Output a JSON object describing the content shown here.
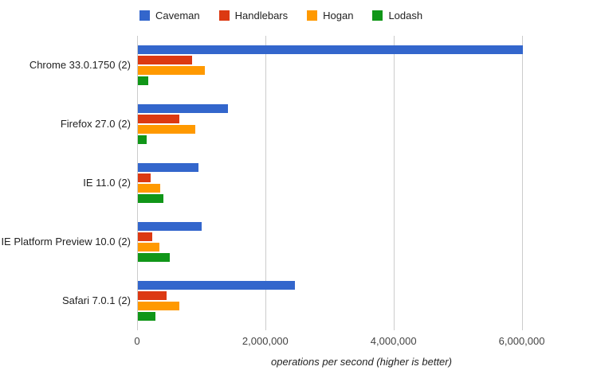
{
  "page": {
    "background": "#ffffff"
  },
  "chart_data": {
    "type": "bar",
    "orientation": "horizontal",
    "title": "",
    "xlabel": "operations per second (higher is better)",
    "ylabel": "",
    "xlim": [
      0,
      7000000
    ],
    "xticks": [
      0,
      2000000,
      4000000,
      6000000
    ],
    "xtick_labels": [
      "0",
      "2,000,000",
      "4,000,000",
      "6,000,000"
    ],
    "grid": true,
    "legend_position": "top",
    "categories": [
      "Chrome 33.0.1750 (2)",
      "Firefox 27.0 (2)",
      "IE 11.0 (2)",
      "IE Platform Preview 10.0 (2)",
      "Safari 7.0.1 (2)"
    ],
    "series": [
      {
        "name": "Caveman",
        "color": "#3366cc",
        "values": [
          6000000,
          1400000,
          950000,
          1000000,
          2450000
        ]
      },
      {
        "name": "Handlebars",
        "color": "#dc3912",
        "values": [
          850000,
          650000,
          200000,
          230000,
          450000
        ]
      },
      {
        "name": "Hogan",
        "color": "#ff9900",
        "values": [
          1050000,
          900000,
          350000,
          330000,
          650000
        ]
      },
      {
        "name": "Lodash",
        "color": "#109618",
        "values": [
          160000,
          140000,
          400000,
          500000,
          270000
        ]
      }
    ],
    "colors": {
      "gridline": "#cccccc",
      "category_label": "#222222",
      "tick_label": "#444444"
    }
  }
}
